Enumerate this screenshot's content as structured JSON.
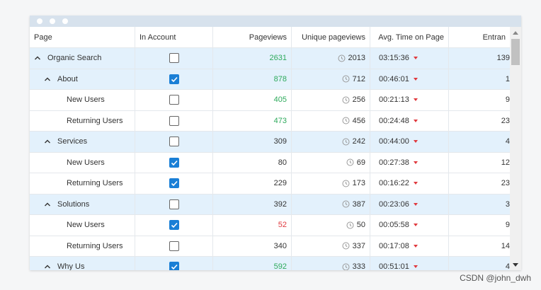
{
  "grid": {
    "columns": [
      "Page",
      "In Account",
      "Pageviews",
      "Unique pageviews",
      "Avg. Time on Page",
      "Entran"
    ],
    "rows": [
      {
        "page": "Organic Search",
        "level": 0,
        "group": true,
        "in_account": false,
        "pageviews": 2631,
        "pageviews_color": "#2eaa5c",
        "unique": 2013,
        "time": "03:15:36",
        "entrances": 139
      },
      {
        "page": "About",
        "level": 1,
        "group": true,
        "in_account": true,
        "pageviews": 878,
        "pageviews_color": "#2eaa5c",
        "unique": 712,
        "time": "00:46:01",
        "entrances": 1
      },
      {
        "page": "New Users",
        "level": 2,
        "group": false,
        "in_account": false,
        "pageviews": 405,
        "pageviews_color": "#2eaa5c",
        "unique": 256,
        "time": "00:21:13",
        "entrances": 9
      },
      {
        "page": "Returning Users",
        "level": 2,
        "group": false,
        "in_account": false,
        "pageviews": 473,
        "pageviews_color": "#2eaa5c",
        "unique": 456,
        "time": "00:24:48",
        "entrances": 23
      },
      {
        "page": "Services",
        "level": 1,
        "group": true,
        "in_account": false,
        "pageviews": 309,
        "pageviews_color": "#333333",
        "unique": 242,
        "time": "00:44:00",
        "entrances": 4
      },
      {
        "page": "New Users",
        "level": 2,
        "group": false,
        "in_account": true,
        "pageviews": 80,
        "pageviews_color": "#333333",
        "unique": 69,
        "time": "00:27:38",
        "entrances": 12
      },
      {
        "page": "Returning Users",
        "level": 2,
        "group": false,
        "in_account": true,
        "pageviews": 229,
        "pageviews_color": "#333333",
        "unique": 173,
        "time": "00:16:22",
        "entrances": 23
      },
      {
        "page": "Solutions",
        "level": 1,
        "group": true,
        "in_account": false,
        "pageviews": 392,
        "pageviews_color": "#333333",
        "unique": 387,
        "time": "00:23:06",
        "entrances": 3
      },
      {
        "page": "New Users",
        "level": 2,
        "group": false,
        "in_account": true,
        "pageviews": 52,
        "pageviews_color": "#e0393e",
        "unique": 50,
        "time": "00:05:58",
        "entrances": 9
      },
      {
        "page": "Returning Users",
        "level": 2,
        "group": false,
        "in_account": false,
        "pageviews": 340,
        "pageviews_color": "#333333",
        "unique": 337,
        "time": "00:17:08",
        "entrances": 14
      },
      {
        "page": "Why Us",
        "level": 1,
        "group": true,
        "in_account": true,
        "pageviews": 592,
        "pageviews_color": "#2eaa5c",
        "unique": 333,
        "time": "00:51:01",
        "entrances": 4
      }
    ]
  },
  "watermark": "CSDN @john_dwh"
}
